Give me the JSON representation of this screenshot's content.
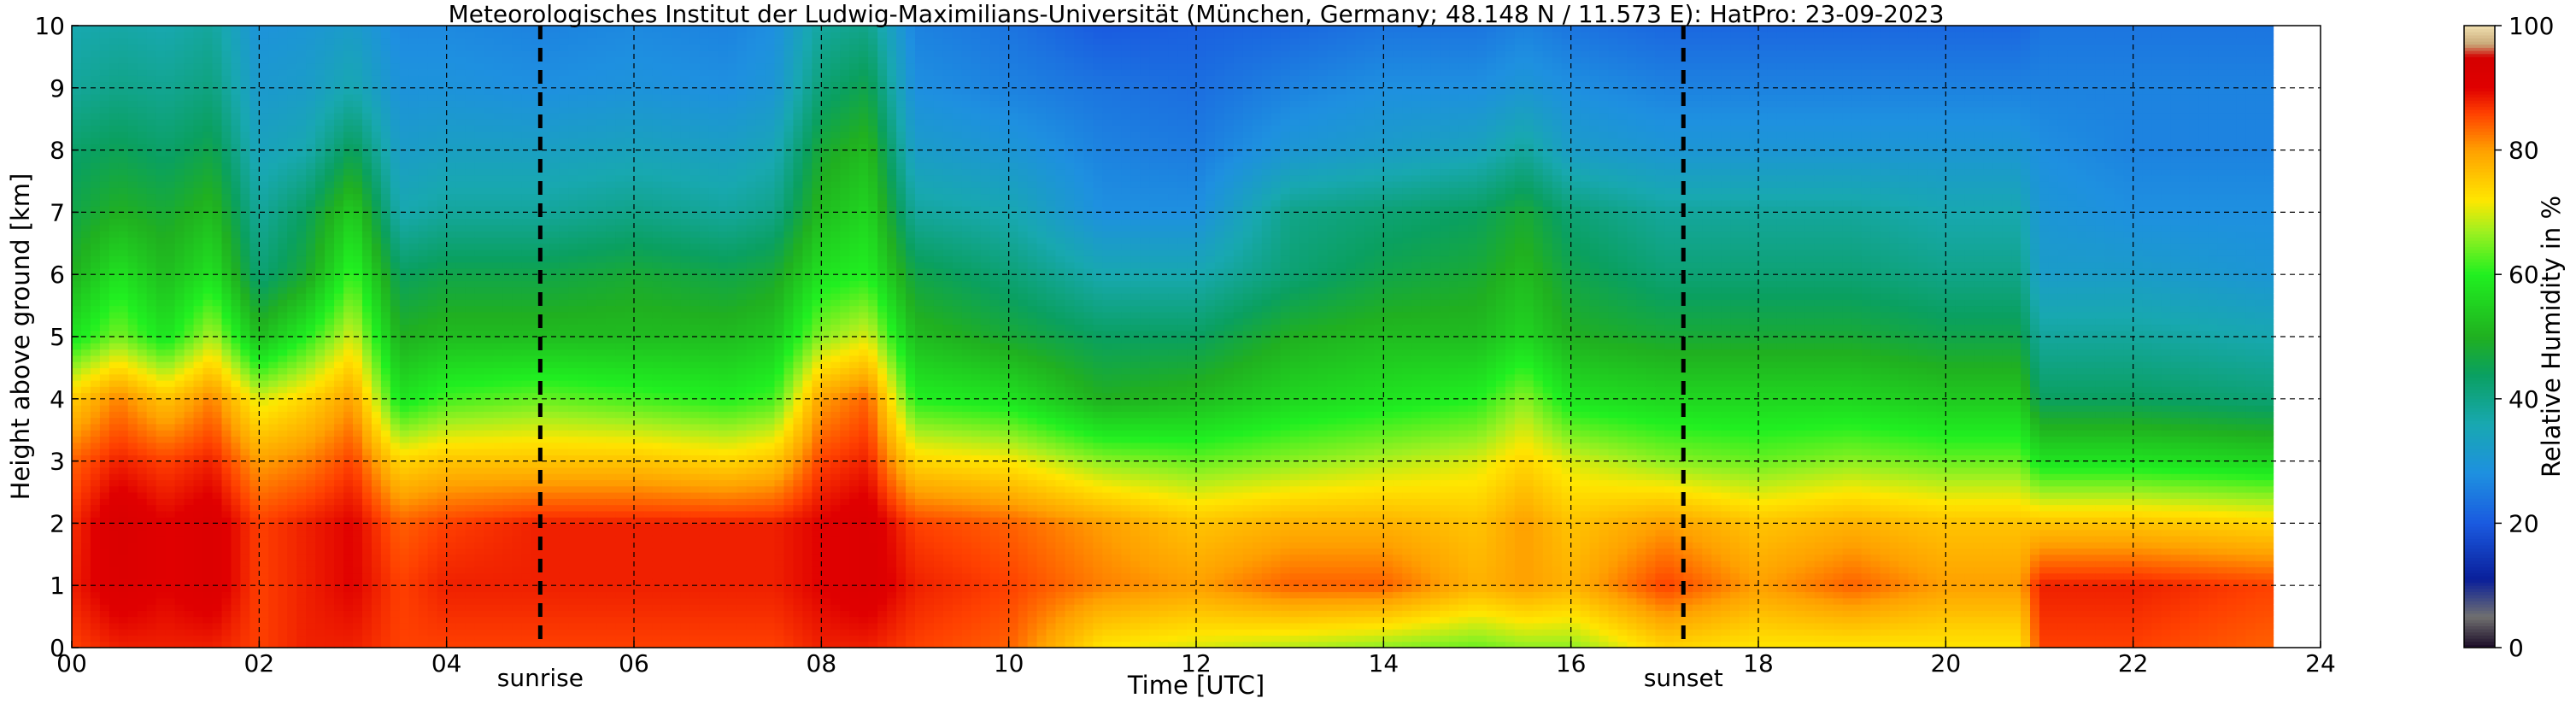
{
  "chart_data": {
    "type": "heatmap",
    "title": "Meteorologisches Institut der Ludwig-Maximilians-Universität (München, Germany; 48.148 N / 11.573 E):    HatPro: 23-09-2023",
    "xlabel": "Time [UTC]",
    "ylabel": "Height above ground [km]",
    "xlim": [
      0,
      24
    ],
    "ylim": [
      0,
      10
    ],
    "x_ticks": [
      "00",
      "02",
      "04",
      "06",
      "08",
      "10",
      "12",
      "14",
      "16",
      "18",
      "20",
      "22",
      "24"
    ],
    "y_ticks": [
      "0",
      "1",
      "2",
      "3",
      "4",
      "5",
      "6",
      "7",
      "8",
      "9",
      "10"
    ],
    "grid": true,
    "colorbar": {
      "label": "Relative Humidity in %",
      "range": [
        0,
        100
      ],
      "ticks": [
        "0",
        "20",
        "40",
        "60",
        "80",
        "100"
      ],
      "stops": [
        {
          "value": 0,
          "color": "#1a0a26"
        },
        {
          "value": 5,
          "color": "#707070"
        },
        {
          "value": 11,
          "color": "#0a1f9a"
        },
        {
          "value": 20,
          "color": "#1a5ae0"
        },
        {
          "value": 28,
          "color": "#1e90e0"
        },
        {
          "value": 36,
          "color": "#18a8b0"
        },
        {
          "value": 44,
          "color": "#0aa060"
        },
        {
          "value": 50,
          "color": "#20b020"
        },
        {
          "value": 60,
          "color": "#20f020"
        },
        {
          "value": 67,
          "color": "#a0f020"
        },
        {
          "value": 72,
          "color": "#ffe600"
        },
        {
          "value": 80,
          "color": "#ffa000"
        },
        {
          "value": 86,
          "color": "#ff4000"
        },
        {
          "value": 90,
          "color": "#e00000"
        },
        {
          "value": 95,
          "color": "#d40000"
        },
        {
          "value": 97,
          "color": "#c8a878"
        },
        {
          "value": 100,
          "color": "#f0e0b0"
        }
      ]
    },
    "markers": [
      {
        "label": "sunrise",
        "time": 5.0
      },
      {
        "label": "sunset",
        "time": 17.2
      }
    ],
    "data_gap_time": 23.5,
    "profiles": [
      {
        "time": 0.0,
        "rh": [
          86,
          88,
          87,
          84,
          75,
          58,
          50,
          46,
          43,
          38,
          36
        ]
      },
      {
        "time": 0.5,
        "rh": [
          88,
          92,
          93,
          88,
          82,
          65,
          58,
          50,
          45,
          40,
          37
        ]
      },
      {
        "time": 1.0,
        "rh": [
          88,
          90,
          90,
          86,
          76,
          58,
          52,
          48,
          43,
          39,
          36
        ]
      },
      {
        "time": 1.5,
        "rh": [
          88,
          92,
          92,
          88,
          82,
          68,
          58,
          52,
          46,
          41,
          38
        ]
      },
      {
        "time": 2.0,
        "rh": [
          86,
          86,
          86,
          80,
          70,
          52,
          42,
          38,
          34,
          31,
          29
        ]
      },
      {
        "time": 2.5,
        "rh": [
          88,
          88,
          88,
          82,
          74,
          60,
          48,
          44,
          36,
          32,
          30
        ]
      },
      {
        "time": 3.0,
        "rh": [
          88,
          90,
          90,
          86,
          80,
          70,
          62,
          55,
          45,
          36,
          32
        ]
      },
      {
        "time": 3.5,
        "rh": [
          86,
          86,
          84,
          74,
          58,
          50,
          44,
          36,
          32,
          29,
          27
        ]
      },
      {
        "time": 4.0,
        "rh": [
          86,
          88,
          86,
          76,
          62,
          52,
          46,
          38,
          33,
          29,
          27
        ]
      },
      {
        "time": 5.0,
        "rh": [
          86,
          88,
          88,
          76,
          64,
          52,
          46,
          38,
          33,
          28,
          26
        ]
      },
      {
        "time": 6.0,
        "rh": [
          86,
          88,
          88,
          76,
          62,
          52,
          48,
          40,
          34,
          29,
          27
        ]
      },
      {
        "time": 7.0,
        "rh": [
          86,
          88,
          88,
          74,
          60,
          52,
          46,
          38,
          33,
          28,
          26
        ]
      },
      {
        "time": 7.5,
        "rh": [
          86,
          88,
          88,
          76,
          62,
          54,
          48,
          40,
          35,
          30,
          28
        ]
      },
      {
        "time": 8.0,
        "rh": [
          88,
          90,
          90,
          86,
          80,
          66,
          58,
          52,
          48,
          42,
          38
        ]
      },
      {
        "time": 8.5,
        "rh": [
          88,
          92,
          92,
          88,
          84,
          70,
          60,
          56,
          52,
          46,
          40
        ]
      },
      {
        "time": 9.0,
        "rh": [
          86,
          88,
          86,
          74,
          60,
          52,
          46,
          38,
          32,
          28,
          26
        ]
      },
      {
        "time": 10.0,
        "rh": [
          84,
          86,
          84,
          72,
          58,
          48,
          42,
          36,
          30,
          26,
          24
        ]
      },
      {
        "time": 11.0,
        "rh": [
          72,
          82,
          80,
          66,
          50,
          44,
          36,
          28,
          26,
          24,
          20
        ]
      },
      {
        "time": 12.0,
        "rh": [
          70,
          80,
          76,
          64,
          52,
          44,
          36,
          28,
          25,
          23,
          21
        ]
      },
      {
        "time": 13.0,
        "rh": [
          68,
          84,
          78,
          66,
          56,
          50,
          42,
          40,
          30,
          26,
          22
        ]
      },
      {
        "time": 14.0,
        "rh": [
          66,
          84,
          78,
          68,
          58,
          52,
          46,
          42,
          32,
          28,
          24
        ]
      },
      {
        "time": 15.0,
        "rh": [
          64,
          78,
          76,
          70,
          60,
          52,
          48,
          44,
          34,
          28,
          24
        ]
      },
      {
        "time": 15.5,
        "rh": [
          66,
          80,
          80,
          74,
          66,
          56,
          52,
          48,
          38,
          30,
          26
        ]
      },
      {
        "time": 16.0,
        "rh": [
          66,
          78,
          76,
          70,
          58,
          50,
          46,
          42,
          32,
          28,
          24
        ]
      },
      {
        "time": 17.0,
        "rh": [
          74,
          86,
          80,
          66,
          56,
          48,
          42,
          38,
          30,
          26,
          22
        ]
      },
      {
        "time": 18.0,
        "rh": [
          72,
          80,
          76,
          64,
          56,
          48,
          42,
          38,
          30,
          26,
          22
        ]
      },
      {
        "time": 19.0,
        "rh": [
          72,
          84,
          78,
          66,
          56,
          48,
          42,
          38,
          30,
          26,
          22
        ]
      },
      {
        "time": 20.0,
        "rh": [
          72,
          80,
          76,
          64,
          54,
          46,
          40,
          36,
          30,
          26,
          22
        ]
      },
      {
        "time": 20.8,
        "rh": [
          72,
          80,
          76,
          64,
          54,
          46,
          40,
          36,
          30,
          26,
          22
        ]
      },
      {
        "time": 21.0,
        "rh": [
          86,
          88,
          76,
          58,
          44,
          38,
          32,
          30,
          28,
          26,
          24
        ]
      },
      {
        "time": 22.0,
        "rh": [
          86,
          88,
          76,
          58,
          44,
          38,
          32,
          28,
          26,
          26,
          24
        ]
      },
      {
        "time": 23.4,
        "rh": [
          84,
          86,
          74,
          56,
          42,
          36,
          30,
          28,
          26,
          26,
          24
        ]
      }
    ]
  }
}
